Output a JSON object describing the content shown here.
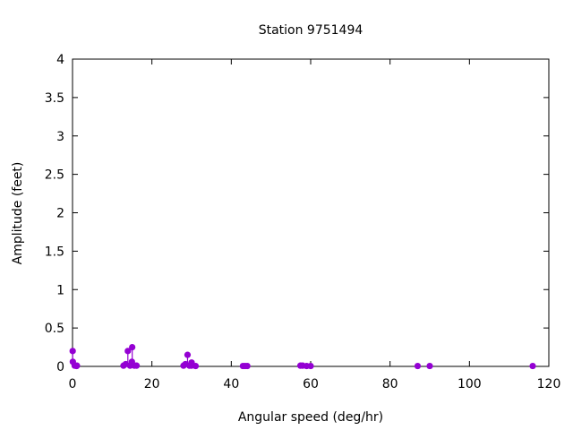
{
  "chart_data": {
    "type": "scatter",
    "style": "impulses with points",
    "title": "Station 9751494",
    "xlabel": "Angular speed (deg/hr)",
    "ylabel": "Amplitude (feet)",
    "xlim": [
      0,
      120
    ],
    "ylim": [
      0,
      4
    ],
    "xticks": [
      0,
      20,
      40,
      60,
      80,
      100,
      120
    ],
    "yticks": [
      0,
      0.5,
      1,
      1.5,
      2,
      2.5,
      3,
      3.5,
      4
    ],
    "ytick_labels": [
      "0",
      "0.5",
      "1",
      "1.5",
      "2",
      "2.5",
      "3",
      "3.5",
      "4"
    ],
    "grid": false,
    "color": "#9400d3",
    "points": [
      {
        "x": 0.04,
        "y": 0.2
      },
      {
        "x": 0.08,
        "y": 0.06
      },
      {
        "x": 0.54,
        "y": 0.01
      },
      {
        "x": 1.02,
        "y": 0.005
      },
      {
        "x": 1.1,
        "y": 0.01
      },
      {
        "x": 12.85,
        "y": 0.01
      },
      {
        "x": 13.4,
        "y": 0.03
      },
      {
        "x": 13.94,
        "y": 0.2
      },
      {
        "x": 14.5,
        "y": 0.01
      },
      {
        "x": 14.96,
        "y": 0.06
      },
      {
        "x": 15.04,
        "y": 0.25
      },
      {
        "x": 15.59,
        "y": 0.01
      },
      {
        "x": 16.14,
        "y": 0.01
      },
      {
        "x": 27.97,
        "y": 0.01
      },
      {
        "x": 28.44,
        "y": 0.03
      },
      {
        "x": 28.98,
        "y": 0.15
      },
      {
        "x": 29.46,
        "y": 0.01
      },
      {
        "x": 29.96,
        "y": 0.01
      },
      {
        "x": 30.0,
        "y": 0.05
      },
      {
        "x": 30.08,
        "y": 0.02
      },
      {
        "x": 31.02,
        "y": 0.005
      },
      {
        "x": 42.93,
        "y": 0.005
      },
      {
        "x": 43.48,
        "y": 0.005
      },
      {
        "x": 44.03,
        "y": 0.005
      },
      {
        "x": 57.42,
        "y": 0.01
      },
      {
        "x": 57.97,
        "y": 0.01
      },
      {
        "x": 58.98,
        "y": 0.005
      },
      {
        "x": 60.0,
        "y": 0.005
      },
      {
        "x": 86.95,
        "y": 0.005
      },
      {
        "x": 90.0,
        "y": 0.005
      },
      {
        "x": 115.94,
        "y": 0.005
      }
    ]
  }
}
